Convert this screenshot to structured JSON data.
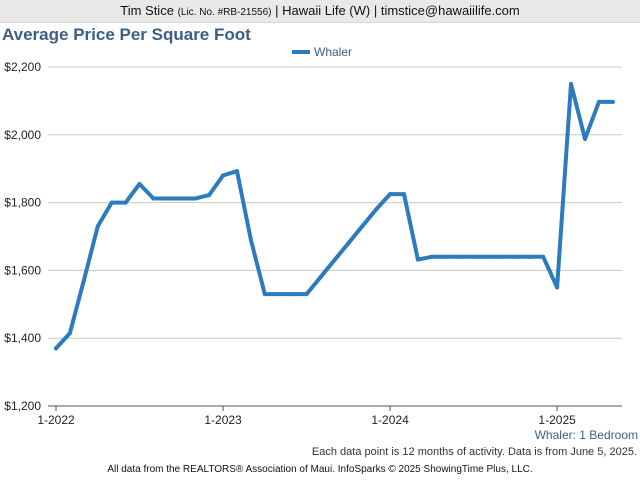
{
  "header": {
    "name": "Tim Stice",
    "license": "(Lic. No. #RB-21556)",
    "rest": "| Hawaii Life (W) | timstice@hawaiilife.com"
  },
  "chart_data": {
    "type": "line",
    "title": "Average Price Per Square Foot",
    "series": [
      {
        "name": "Whaler",
        "color": "#2c7bbd",
        "x": [
          "2022-01",
          "2022-02",
          "2022-03",
          "2022-04",
          "2022-05",
          "2022-06",
          "2022-07",
          "2022-08",
          "2022-09",
          "2022-10",
          "2022-11",
          "2022-12",
          "2023-01",
          "2023-02",
          "2023-03",
          "2023-04",
          "2023-05",
          "2023-06",
          "2023-07",
          "2023-08",
          "2023-09",
          "2023-10",
          "2023-11",
          "2023-12",
          "2024-01",
          "2024-02",
          "2024-03",
          "2024-04",
          "2024-05",
          "2024-06",
          "2024-07",
          "2024-08",
          "2024-09",
          "2024-10",
          "2024-11",
          "2024-12",
          "2025-01",
          "2025-02",
          "2025-03",
          "2025-04",
          "2025-05"
        ],
        "values": [
          1370,
          1415,
          1570,
          1730,
          1800,
          1800,
          1855,
          1812,
          1812,
          1812,
          1812,
          1822,
          1880,
          1893,
          1690,
          1530,
          1530,
          1530,
          1530,
          1580,
          1630,
          1680,
          1730,
          1780,
          1825,
          1825,
          1632,
          1640,
          1640,
          1640,
          1640,
          1640,
          1640,
          1640,
          1640,
          1640,
          1550,
          2150,
          1988,
          2097,
          2097
        ]
      }
    ],
    "x_ticks": [
      "1-2022",
      "1-2023",
      "1-2024",
      "1-2025"
    ],
    "y_ticks": [
      "$1,200",
      "$1,400",
      "$1,600",
      "$1,800",
      "$2,000",
      "$2,200"
    ],
    "ylim": [
      1200,
      2200
    ],
    "grid": true,
    "legend_position": "top-center"
  },
  "series_label": "Whaler: 1 Bedroom",
  "note": "Each data point is 12 months of activity. Data is from June 5, 2025.",
  "footer": "All data from the REALTORS® Association of Maui. InfoSparks © 2025 ShowingTime Plus, LLC."
}
